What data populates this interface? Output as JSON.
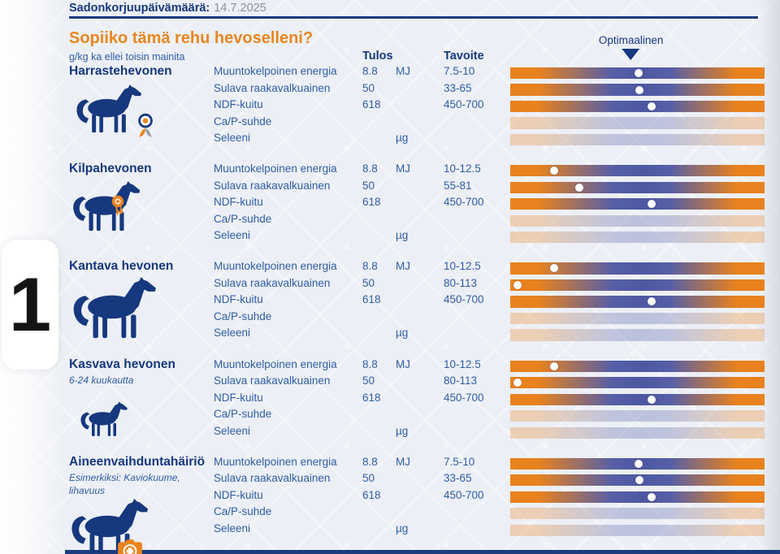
{
  "header": {
    "label": "Sadonkorjuupäivämäärä:",
    "value": "14.7.2025"
  },
  "intro": {
    "title": "Sopiiko tämä rehu hevoselleni?",
    "unit_note": "g/kg ka ellei toisin mainita"
  },
  "columns": {
    "result": "Tulos",
    "target": "Tavoite",
    "optimal": "Optimaalinen"
  },
  "page_number": "1",
  "shared": {
    "parameters": [
      "Muuntokelpoinen energia",
      "Sulava raakavalkuainen",
      "NDF-kuitu",
      "Ca/P-suhde",
      "Seleeni"
    ],
    "results": [
      "8.8",
      "50",
      "618",
      "",
      ""
    ],
    "units": [
      "MJ",
      "",
      "",
      "",
      "µg"
    ]
  },
  "sections": [
    {
      "name": "Harrastehevonen",
      "subtitle": "",
      "icon": "horse-flower",
      "targets": [
        "7.5-10",
        "33-65",
        "450-700",
        "",
        ""
      ],
      "dots": [
        0.505,
        0.508,
        0.557
      ]
    },
    {
      "name": "Kilpahevonen",
      "subtitle": "",
      "icon": "horse-rosette",
      "targets": [
        "10-12.5",
        "55-81",
        "450-700",
        "",
        ""
      ],
      "dots": [
        0.171,
        0.27,
        0.557
      ]
    },
    {
      "name": "Kantava hevonen",
      "subtitle": "",
      "icon": "horse",
      "targets": [
        "10-12.5",
        "80-113",
        "450-700",
        "",
        ""
      ],
      "dots": [
        0.171,
        0.028,
        0.557
      ]
    },
    {
      "name": "Kasvava hevonen",
      "subtitle": "6-24 kuukautta",
      "icon": "foal",
      "targets": [
        "10-12.5",
        "80-113",
        "450-700",
        "",
        ""
      ],
      "dots": [
        0.171,
        0.028,
        0.557
      ]
    },
    {
      "name": "Aineenvaihduntahäiriö",
      "subtitle": "Esimerkiksi: Kaviokuume, lihavuus",
      "icon": "horse-medical",
      "targets": [
        "7.5-10",
        "33-65",
        "450-700",
        "",
        ""
      ],
      "dots": [
        0.505,
        0.508,
        0.557
      ]
    }
  ],
  "optimal_marker_position": 0.475,
  "colors": {
    "accent_orange": "#E8821E",
    "navy": "#16387E",
    "text_blue": "#2F5DA4",
    "bar_blue": "#4E58A2",
    "date_gray": "#8C929D",
    "background": "#ECEFF5"
  }
}
